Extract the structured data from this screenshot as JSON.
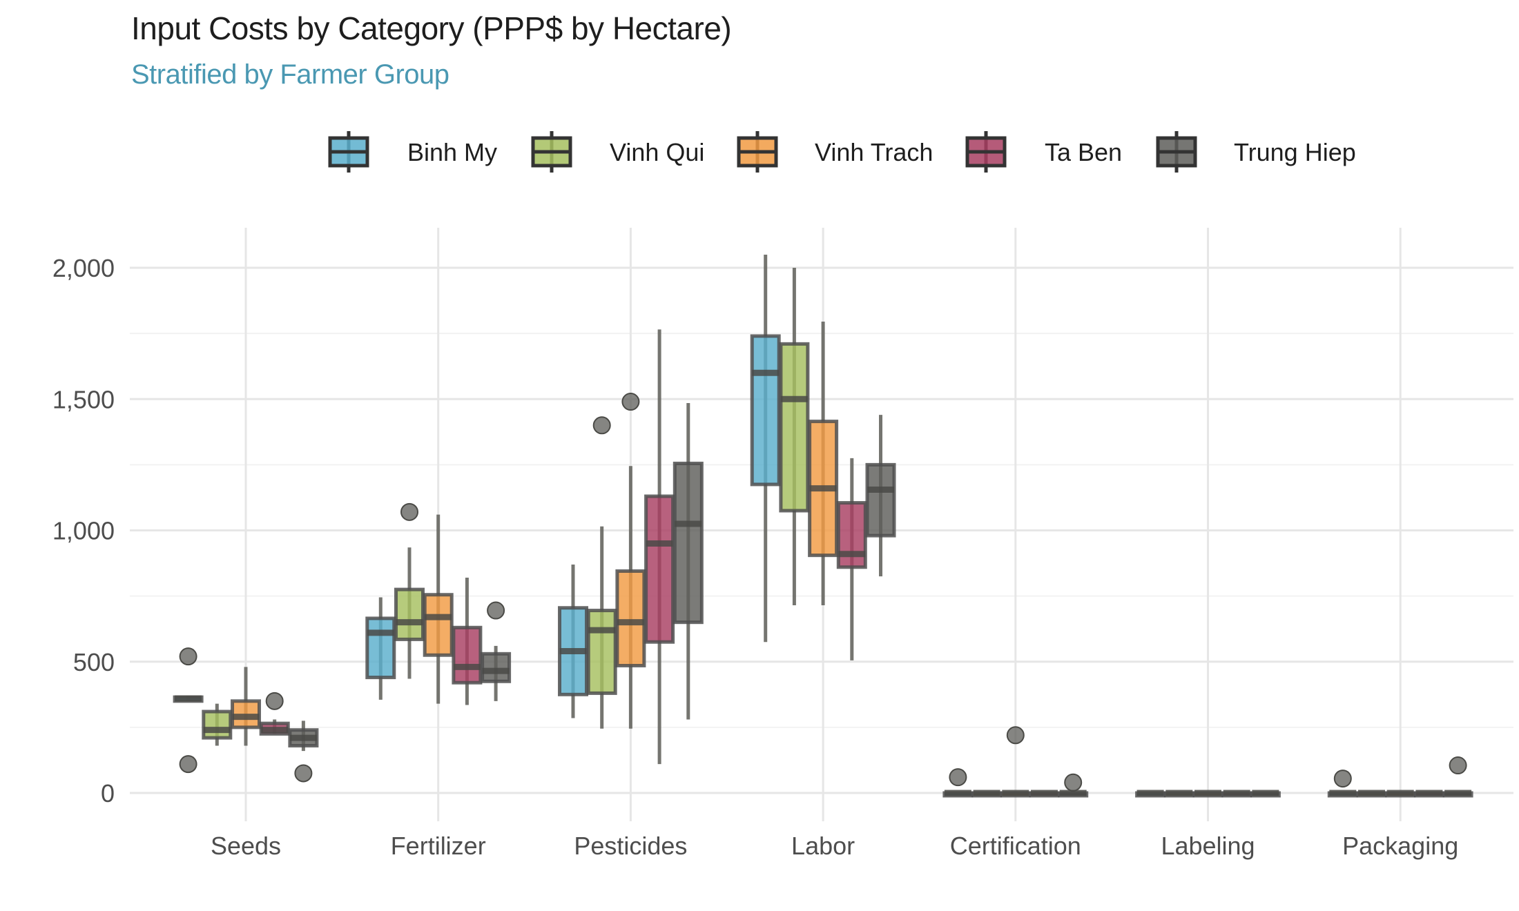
{
  "title": "Input Costs by Category (PPP$ by Hectare)",
  "subtitle": "Stratified by Farmer Group",
  "chart_data": {
    "type": "box",
    "title": "Input Costs by Category (PPP$ by Hectare)",
    "subtitle": "Stratified by Farmer Group",
    "xlabel": "",
    "ylabel": "",
    "ylim": [
      -110,
      2150
    ],
    "yticks": [
      0,
      500,
      1000,
      1500,
      2000
    ],
    "ytick_labels": [
      "0",
      "500",
      "1,000",
      "1,500",
      "2,000"
    ],
    "categories": [
      "Seeds",
      "Fertilizer",
      "Pesticides",
      "Labor",
      "Certification",
      "Labeling",
      "Packaging"
    ],
    "grid": true,
    "legend_position": "top",
    "series": [
      {
        "name": "Binh My",
        "color": "#5aafcc",
        "boxes": [
          {
            "min": 350,
            "q1": 350,
            "median": 360,
            "q3": 365,
            "max": 370,
            "outliers": [
              520,
              110
            ]
          },
          {
            "min": 355,
            "q1": 440,
            "median": 610,
            "q3": 665,
            "max": 745,
            "outliers": []
          },
          {
            "min": 285,
            "q1": 375,
            "median": 540,
            "q3": 705,
            "max": 870,
            "outliers": []
          },
          {
            "min": 575,
            "q1": 1175,
            "median": 1600,
            "q3": 1740,
            "max": 2050,
            "outliers": []
          },
          {
            "min": 0,
            "q1": 0,
            "median": 0,
            "q3": 0,
            "max": 0,
            "outliers": [
              60
            ]
          },
          {
            "min": 0,
            "q1": 0,
            "median": 0,
            "q3": 0,
            "max": 0,
            "outliers": []
          },
          {
            "min": 0,
            "q1": 0,
            "median": 0,
            "q3": 0,
            "max": 0,
            "outliers": [
              55
            ]
          }
        ]
      },
      {
        "name": "Vinh Qui",
        "color": "#a6bf5f",
        "boxes": [
          {
            "min": 180,
            "q1": 210,
            "median": 240,
            "q3": 310,
            "max": 340,
            "outliers": []
          },
          {
            "min": 435,
            "q1": 585,
            "median": 650,
            "q3": 775,
            "max": 935,
            "outliers": [
              1070
            ]
          },
          {
            "min": 245,
            "q1": 380,
            "median": 620,
            "q3": 695,
            "max": 1015,
            "outliers": [
              1400
            ]
          },
          {
            "min": 715,
            "q1": 1075,
            "median": 1500,
            "q3": 1710,
            "max": 2000,
            "outliers": []
          },
          {
            "min": 0,
            "q1": 0,
            "median": 0,
            "q3": 0,
            "max": 0,
            "outliers": []
          },
          {
            "min": 0,
            "q1": 0,
            "median": 0,
            "q3": 0,
            "max": 0,
            "outliers": []
          },
          {
            "min": 0,
            "q1": 0,
            "median": 0,
            "q3": 0,
            "max": 0,
            "outliers": []
          }
        ]
      },
      {
        "name": "Vinh Trach",
        "color": "#f19b43",
        "boxes": [
          {
            "min": 180,
            "q1": 250,
            "median": 290,
            "q3": 350,
            "max": 480,
            "outliers": []
          },
          {
            "min": 340,
            "q1": 525,
            "median": 670,
            "q3": 755,
            "max": 1060,
            "outliers": []
          },
          {
            "min": 245,
            "q1": 485,
            "median": 650,
            "q3": 845,
            "max": 1245,
            "outliers": [
              1490
            ]
          },
          {
            "min": 715,
            "q1": 905,
            "median": 1160,
            "q3": 1415,
            "max": 1795,
            "outliers": []
          },
          {
            "min": 0,
            "q1": 0,
            "median": 0,
            "q3": 0,
            "max": 0,
            "outliers": [
              220
            ]
          },
          {
            "min": 0,
            "q1": 0,
            "median": 0,
            "q3": 0,
            "max": 0,
            "outliers": []
          },
          {
            "min": 0,
            "q1": 0,
            "median": 0,
            "q3": 0,
            "max": 0,
            "outliers": []
          }
        ]
      },
      {
        "name": "Ta Ben",
        "color": "#a83e62",
        "boxes": [
          {
            "min": 225,
            "q1": 225,
            "median": 240,
            "q3": 265,
            "max": 280,
            "outliers": [
              350
            ]
          },
          {
            "min": 335,
            "q1": 420,
            "median": 480,
            "q3": 630,
            "max": 820,
            "outliers": []
          },
          {
            "min": 110,
            "q1": 575,
            "median": 950,
            "q3": 1130,
            "max": 1765,
            "outliers": []
          },
          {
            "min": 505,
            "q1": 860,
            "median": 910,
            "q3": 1105,
            "max": 1275,
            "outliers": []
          },
          {
            "min": 0,
            "q1": 0,
            "median": 0,
            "q3": 0,
            "max": 0,
            "outliers": []
          },
          {
            "min": 0,
            "q1": 0,
            "median": 0,
            "q3": 0,
            "max": 0,
            "outliers": []
          },
          {
            "min": 0,
            "q1": 0,
            "median": 0,
            "q3": 0,
            "max": 0,
            "outliers": []
          }
        ]
      },
      {
        "name": "Trung Hiep",
        "color": "#5e5e5a",
        "boxes": [
          {
            "min": 160,
            "q1": 180,
            "median": 210,
            "q3": 240,
            "max": 275,
            "outliers": [
              75
            ]
          },
          {
            "min": 350,
            "q1": 425,
            "median": 465,
            "q3": 530,
            "max": 560,
            "outliers": [
              695
            ]
          },
          {
            "min": 280,
            "q1": 650,
            "median": 1025,
            "q3": 1255,
            "max": 1485,
            "outliers": []
          },
          {
            "min": 825,
            "q1": 980,
            "median": 1155,
            "q3": 1250,
            "max": 1440,
            "outliers": []
          },
          {
            "min": 0,
            "q1": 0,
            "median": 0,
            "q3": 0,
            "max": 0,
            "outliers": [
              40
            ]
          },
          {
            "min": 0,
            "q1": 0,
            "median": 0,
            "q3": 0,
            "max": 0,
            "outliers": []
          },
          {
            "min": 0,
            "q1": 0,
            "median": 0,
            "q3": 0,
            "max": 0,
            "outliers": [
              105
            ]
          }
        ]
      }
    ]
  }
}
